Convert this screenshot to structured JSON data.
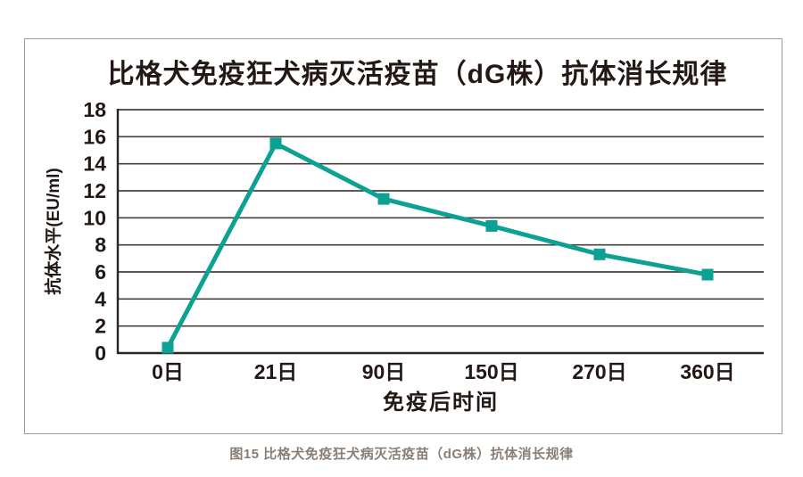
{
  "figure": {
    "title": "比格犬免疫狂犬病灭活疫苗（dG株）抗体消长规律",
    "caption": "图15 比格犬免疫狂犬病灭活疫苗（dG株）抗体消长规律"
  },
  "chart_data": {
    "type": "line",
    "title": "比格犬免疫狂犬病灭活疫苗（dG株）抗体消长规律",
    "categories": [
      "0日",
      "21日",
      "90日",
      "150日",
      "270日",
      "360日"
    ],
    "values": [
      0.4,
      15.5,
      11.4,
      9.4,
      7.3,
      5.8
    ],
    "series_name": "抗体水平",
    "xlabel": "免疫后时间",
    "ylabel": "抗体水平(EU/ml)",
    "ylim": [
      0,
      18
    ],
    "y_ticks": [
      0,
      2,
      4,
      6,
      8,
      10,
      12,
      14,
      16,
      18
    ],
    "grid": "horizontal",
    "legend": "none",
    "marker": "square",
    "colors": {
      "line": "#0ca193",
      "marker": "#0ca193",
      "grid": "#453f3a",
      "axis": "#2b2520",
      "text": "#231815",
      "caption": "#8a7e75",
      "border": "#9b9b9b"
    }
  }
}
